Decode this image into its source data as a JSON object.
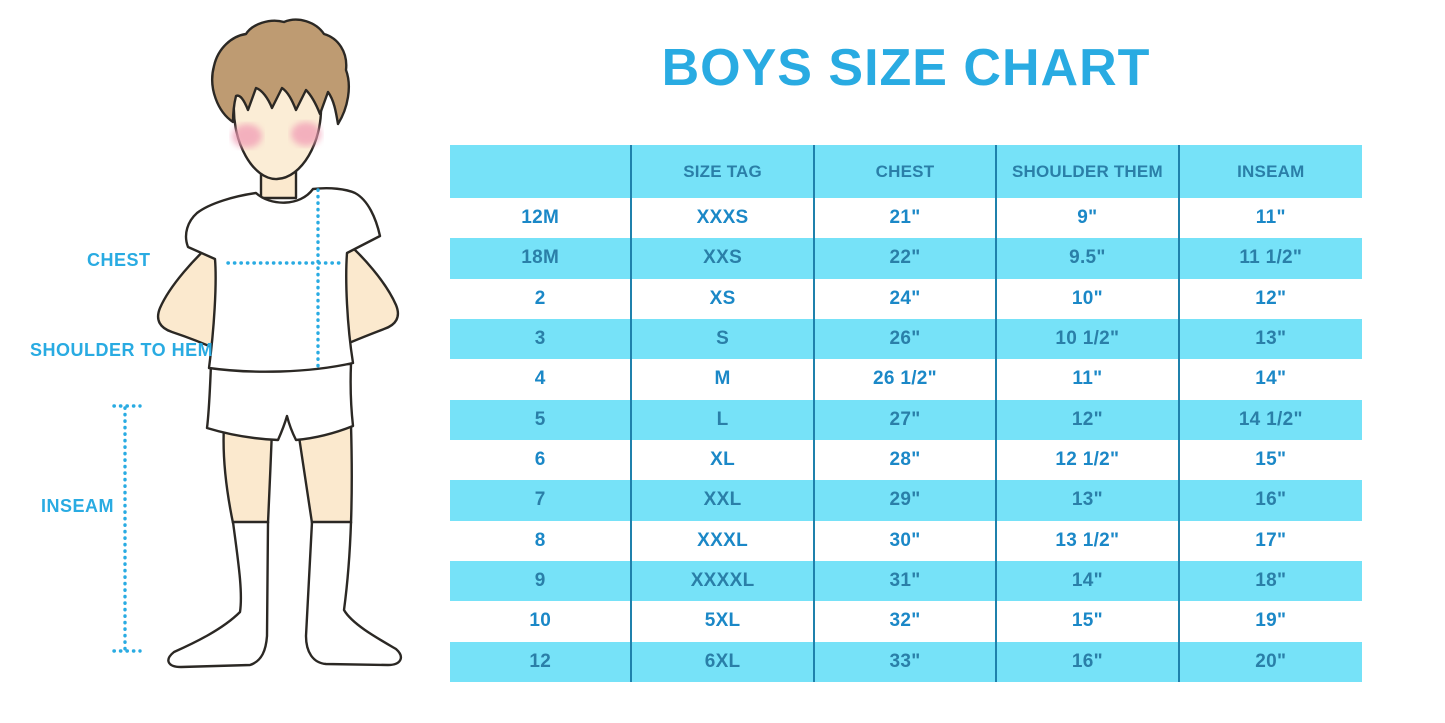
{
  "title": "BOYS SIZE CHART",
  "colors": {
    "accent": "#29ABE2",
    "header_bg": "#76E2F8",
    "divider": "#1F81AC",
    "text_on_white": "#1B88C7",
    "text_on_blue": "#2A7FA8"
  },
  "figure": {
    "chest_label": "CHEST",
    "shoulder_to_hem_label": "SHOULDER TO HEM",
    "inseam_label": "INSEAM"
  },
  "table": {
    "headers": [
      "",
      "SIZE TAG",
      "CHEST",
      "SHOULDER THEM",
      "INSEAM"
    ],
    "rows": [
      [
        "12M",
        "XXXS",
        "21\"",
        "9\"",
        "11\""
      ],
      [
        "18M",
        "XXS",
        "22\"",
        "9.5\"",
        "11 1/2\""
      ],
      [
        "2",
        "XS",
        "24\"",
        "10\"",
        "12\""
      ],
      [
        "3",
        "S",
        "26\"",
        "10 1/2\"",
        "13\""
      ],
      [
        "4",
        "M",
        "26 1/2\"",
        "11\"",
        "14\""
      ],
      [
        "5",
        "L",
        "27\"",
        "12\"",
        "14 1/2\""
      ],
      [
        "6",
        "XL",
        "28\"",
        "12 1/2\"",
        "15\""
      ],
      [
        "7",
        "XXL",
        "29\"",
        "13\"",
        "16\""
      ],
      [
        "8",
        "XXXL",
        "30\"",
        "13 1/2\"",
        "17\""
      ],
      [
        "9",
        "XXXXL",
        "31\"",
        "14\"",
        "18\""
      ],
      [
        "10",
        "5XL",
        "32\"",
        "15\"",
        "19\""
      ],
      [
        "12",
        "6XL",
        "33\"",
        "16\"",
        "20\""
      ]
    ]
  }
}
